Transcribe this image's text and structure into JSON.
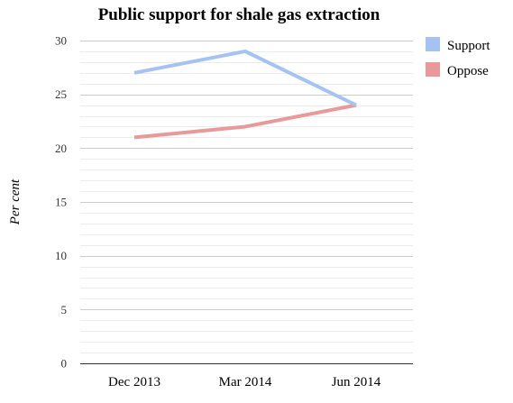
{
  "chart_data": {
    "type": "line",
    "title": "Public support for shale gas extraction",
    "xlabel": "",
    "ylabel": "Per cent",
    "categories": [
      "Dec 2013",
      "Mar 2014",
      "Jun 2014"
    ],
    "series": [
      {
        "name": "Support",
        "color": "#a4c2f4",
        "values": [
          27,
          29,
          24
        ]
      },
      {
        "name": "Oppose",
        "color": "#ea9999",
        "values": [
          21,
          22,
          24
        ]
      }
    ],
    "ylim": [
      0,
      30
    ],
    "yticks": [
      0,
      5,
      10,
      15,
      20,
      25,
      30
    ],
    "grid": true,
    "minor_gridlines_per_major": 4,
    "legend": "right",
    "gridline_color": "#cccccc",
    "minor_gridline_color": "#ececec",
    "axis_color": "#333333"
  }
}
